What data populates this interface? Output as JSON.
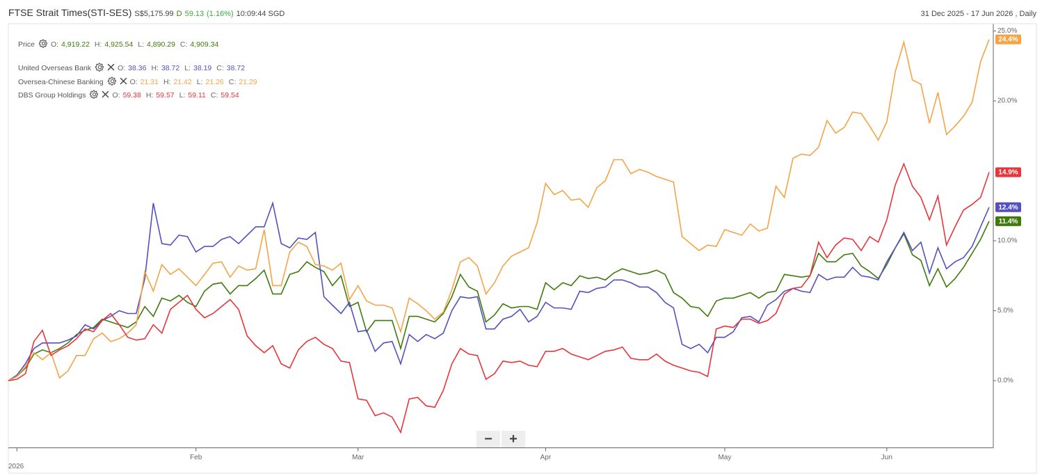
{
  "header": {
    "title": "FTSE Strait Times(STI-SES)",
    "price": "S$5,175.99",
    "flag": "D",
    "change": "59.13",
    "change_pct": "(1.16%)",
    "time": "10:09:44 SGD",
    "range": "31 Dec 2025 - 17 Jun 2026 , Daily"
  },
  "chart_data": {
    "type": "line",
    "categories": [
      null,
      "2026",
      null,
      null,
      null,
      null,
      null,
      null,
      null,
      null,
      null,
      null,
      null,
      null,
      null,
      null,
      null,
      null,
      null,
      null,
      null,
      null,
      "Feb",
      null,
      null,
      null,
      null,
      null,
      null,
      null,
      null,
      null,
      null,
      null,
      null,
      null,
      null,
      null,
      null,
      null,
      null,
      "Mar",
      null,
      null,
      null,
      null,
      null,
      null,
      null,
      null,
      null,
      null,
      null,
      null,
      null,
      null,
      null,
      null,
      null,
      null,
      null,
      null,
      null,
      "Apr",
      null,
      null,
      null,
      null,
      null,
      null,
      null,
      null,
      null,
      null,
      null,
      null,
      null,
      null,
      null,
      null,
      null,
      null,
      null,
      null,
      "May",
      null,
      null,
      null,
      null,
      null,
      null,
      null,
      null,
      null,
      null,
      null,
      null,
      null,
      null,
      null,
      null,
      null,
      null,
      "Jun",
      null,
      null,
      null,
      null,
      null,
      null,
      null,
      null,
      null,
      null,
      null,
      null
    ],
    "ylim": [
      -4.8,
      25.5
    ],
    "yticks": [
      {
        "value": 0,
        "label": "0.0%"
      },
      {
        "value": 5,
        "label": "5.0%"
      },
      {
        "value": 10,
        "label": "10.0%"
      },
      {
        "value": 20,
        "label": "20.0%"
      },
      {
        "value": 25,
        "label": "25.0%"
      }
    ],
    "grid": false,
    "series": [
      {
        "name": "Price",
        "color": "#3f7a0c",
        "ohlc": [
          {
            "label": "O:",
            "value": "4,919.22"
          },
          {
            "label": "H:",
            "value": "4,925.54"
          },
          {
            "label": "L:",
            "value": "4,890.29"
          },
          {
            "label": "C:",
            "value": "4,909.34"
          }
        ],
        "values": [
          0,
          0.3,
          0.9,
          1.9,
          2.2,
          2.0,
          2.3,
          2.7,
          3.3,
          3.6,
          3.8,
          4.4,
          4.2,
          4.0,
          3.8,
          4.2,
          5.3,
          4.6,
          5.9,
          5.7,
          6.1,
          5.6,
          5.3,
          6.4,
          6.9,
          7.0,
          6.2,
          6.8,
          6.8,
          7.3,
          7.9,
          6.2,
          6.2,
          7.6,
          7.8,
          8.5,
          8.1,
          7.8,
          6.8,
          7.5,
          5.3,
          5.6,
          3.5,
          4.3,
          4.3,
          4.3,
          2.3,
          4.6,
          4.6,
          4.4,
          4.2,
          4.8,
          6.0,
          7.6,
          6.7,
          6.4,
          4.2,
          4.7,
          5.5,
          5.2,
          5.3,
          5.3,
          5.1,
          7.0,
          6.5,
          7.0,
          6.8,
          7.5,
          7.3,
          7.4,
          7.2,
          7.7,
          8.0,
          7.8,
          7.6,
          7.7,
          7.9,
          7.6,
          6.3,
          5.9,
          5.3,
          5.2,
          4.6,
          5.7,
          5.9,
          5.9,
          6.1,
          6.3,
          5.9,
          6.3,
          6.4,
          7.6,
          7.5,
          7.4,
          7.5,
          9.1,
          8.5,
          8.5,
          9.0,
          9.1,
          8.2,
          7.8,
          7.3,
          8.3,
          9.5,
          10.5,
          9.0,
          8.6,
          6.8,
          8.0,
          6.7,
          7.3,
          8.1,
          9.1,
          10.1,
          11.4
        ],
        "value_labels": {
          "115": "11.4%"
        }
      },
      {
        "name": "United Overseas Bank",
        "color": "#5251bf",
        "ohlc": [
          {
            "label": "O:",
            "value": "38.36"
          },
          {
            "label": "H:",
            "value": "38.72"
          },
          {
            "label": "L:",
            "value": "38.19"
          },
          {
            "label": "C:",
            "value": "38.72"
          }
        ],
        "values": [
          0,
          0.4,
          1.2,
          2.3,
          2.7,
          2.7,
          2.7,
          2.9,
          3.2,
          4.0,
          3.7,
          4.3,
          4.6,
          5.0,
          4.8,
          4.8,
          7.3,
          12.7,
          9.8,
          9.7,
          10.4,
          10.3,
          9.2,
          9.6,
          9.6,
          10.1,
          10.3,
          9.8,
          10.4,
          11.0,
          11.0,
          12.7,
          9.8,
          9.5,
          10.2,
          10.1,
          10.6,
          6.0,
          5.4,
          4.8,
          5.6,
          3.5,
          3.6,
          2.1,
          2.7,
          2.8,
          1.2,
          3.3,
          2.8,
          3.3,
          3.0,
          3.4,
          5.0,
          6.0,
          5.9,
          6.0,
          3.7,
          3.7,
          4.4,
          4.6,
          5.1,
          4.2,
          4.6,
          5.6,
          5.2,
          5.2,
          5.1,
          6.4,
          6.3,
          6.6,
          6.7,
          7.2,
          7.2,
          7.0,
          6.7,
          6.7,
          6.3,
          5.6,
          5.2,
          2.6,
          2.3,
          2.6,
          2.0,
          3.1,
          3.1,
          3.5,
          4.5,
          4.6,
          4.2,
          5.4,
          5.8,
          6.4,
          6.6,
          6.4,
          6.3,
          7.6,
          7.2,
          7.4,
          7.4,
          8.1,
          7.5,
          7.4,
          7.2,
          8.5,
          9.5,
          10.6,
          9.3,
          9.9,
          7.7,
          9.5,
          8.0,
          8.5,
          8.8,
          9.6,
          11.0,
          12.4
        ],
        "value_labels": {
          "115": "12.4%"
        }
      },
      {
        "name": "Oversea-Chinese Banking",
        "color": "#f5a445",
        "ohlc": [
          {
            "label": "O:",
            "value": "21.31"
          },
          {
            "label": "H:",
            "value": "21.42"
          },
          {
            "label": "L:",
            "value": "21.26"
          },
          {
            "label": "C:",
            "value": "21.29"
          }
        ],
        "values": [
          0,
          0.3,
          1.0,
          2.0,
          1.5,
          2.0,
          0.2,
          0.7,
          1.8,
          1.8,
          3.0,
          3.4,
          2.8,
          3.0,
          3.4,
          4.0,
          7.8,
          6.4,
          8.3,
          7.6,
          8.0,
          7.4,
          6.8,
          7.6,
          8.4,
          8.5,
          7.4,
          8.2,
          7.9,
          8.0,
          10.8,
          6.8,
          6.8,
          9.2,
          9.9,
          9.6,
          8.3,
          8.2,
          7.9,
          8.4,
          5.8,
          6.8,
          5.7,
          5.4,
          5.4,
          5.2,
          3.5,
          5.9,
          5.5,
          5.0,
          4.4,
          4.9,
          6.5,
          8.5,
          8.8,
          8.2,
          6.2,
          7.0,
          8.2,
          8.9,
          9.2,
          9.5,
          11.3,
          14.1,
          13.3,
          13.6,
          12.9,
          13.0,
          12.4,
          13.8,
          14.3,
          15.8,
          15.8,
          14.8,
          15.1,
          14.9,
          14.6,
          14.4,
          14.2,
          10.3,
          9.8,
          9.3,
          9.7,
          9.6,
          10.8,
          10.6,
          10.4,
          11.2,
          10.7,
          10.9,
          13.9,
          13.1,
          15.9,
          16.2,
          16.1,
          16.7,
          18.6,
          17.7,
          18.1,
          19.2,
          19.1,
          18.2,
          17.2,
          18.5,
          22.1,
          24.2,
          21.5,
          21.2,
          18.4,
          20.6,
          17.6,
          18.2,
          18.9,
          19.9,
          22.8,
          24.4
        ],
        "value_labels": {
          "115": "24.4%"
        }
      },
      {
        "name": "DBS Group Holdings",
        "color": "#e8353b",
        "ohlc": [
          {
            "label": "O:",
            "value": "59.38"
          },
          {
            "label": "H:",
            "value": "59.57"
          },
          {
            "label": "L:",
            "value": "59.11"
          },
          {
            "label": "C:",
            "value": "59.54"
          }
        ],
        "values": [
          0,
          0.1,
          0.5,
          2.8,
          3.6,
          1.8,
          2.2,
          2.5,
          3.0,
          3.7,
          3.5,
          4.3,
          4.8,
          4.0,
          3.1,
          2.9,
          3.0,
          4.0,
          3.4,
          5.1,
          5.6,
          6.1,
          5.1,
          4.5,
          4.8,
          5.3,
          5.8,
          5.1,
          3.2,
          2.5,
          2.0,
          2.5,
          1.2,
          0.9,
          2.2,
          2.8,
          3.1,
          2.6,
          2.3,
          1.4,
          1.3,
          -1.3,
          -1.4,
          -2.5,
          -2.3,
          -2.6,
          -3.7,
          -1.3,
          -1.2,
          -1.8,
          -1.9,
          -0.7,
          1.2,
          2.3,
          1.9,
          1.8,
          0.1,
          0.5,
          1.4,
          1.3,
          1.4,
          1.1,
          1.0,
          2.1,
          2.1,
          2.3,
          1.9,
          1.7,
          1.5,
          1.8,
          2.1,
          2.2,
          2.4,
          1.6,
          1.5,
          1.5,
          1.9,
          1.4,
          1.1,
          0.9,
          0.7,
          0.6,
          0.3,
          3.7,
          3.9,
          3.8,
          4.4,
          4.4,
          4.1,
          4.3,
          4.8,
          6.2,
          6.6,
          6.7,
          7.5,
          9.9,
          8.8,
          9.7,
          10.2,
          10.1,
          9.3,
          10.3,
          9.9,
          11.5,
          14.0,
          15.5,
          13.9,
          13.1,
          11.5,
          13.2,
          9.7,
          11.0,
          12.2,
          12.6,
          13.1,
          14.9
        ],
        "value_labels": {
          "115": "14.9%"
        }
      }
    ]
  }
}
